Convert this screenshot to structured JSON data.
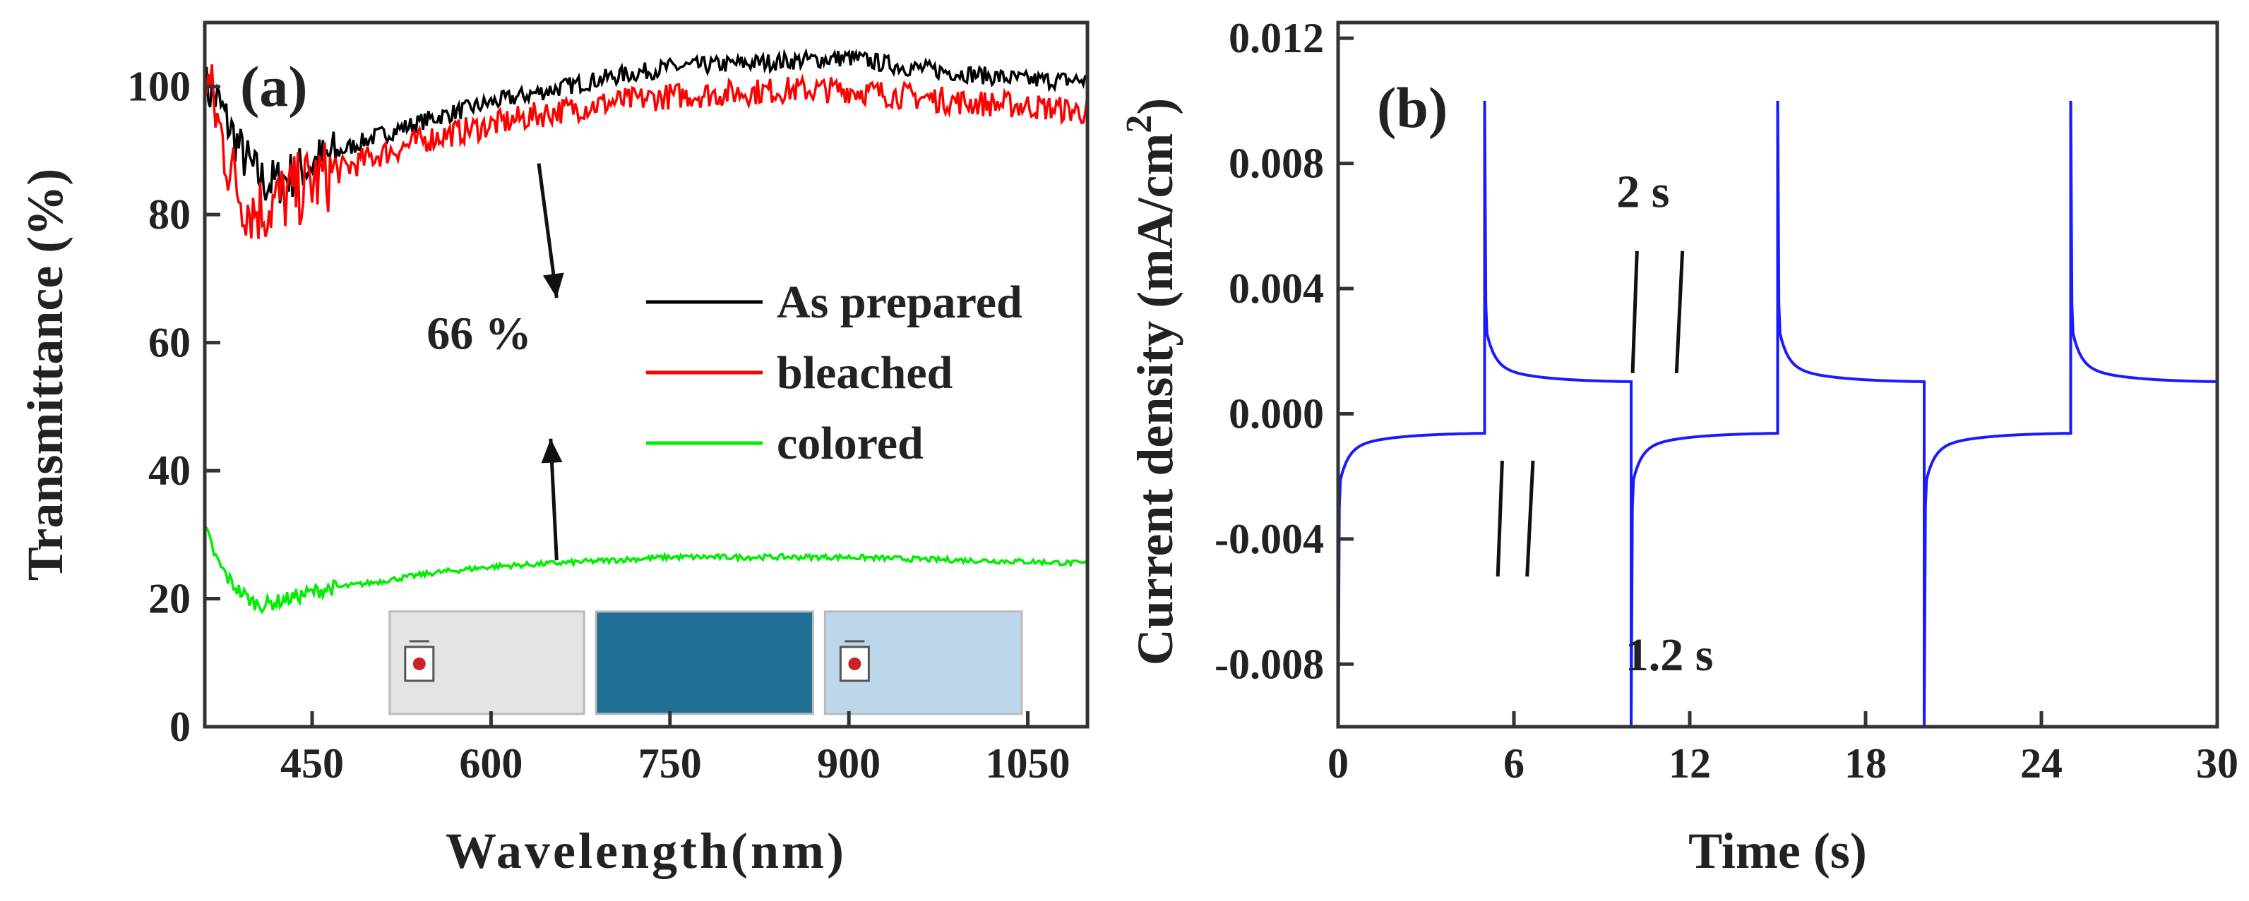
{
  "chart_data": [
    {
      "type": "line",
      "panel_label": "(a)",
      "xlabel": "Wavelength(nm)",
      "ylabel": "Transmittance (%)",
      "xlim": [
        360,
        1100
      ],
      "ylim": [
        0,
        110
      ],
      "x_ticks": [
        450,
        600,
        750,
        900,
        1050
      ],
      "y_ticks": [
        0,
        20,
        40,
        60,
        80,
        100
      ],
      "legend_position": "center-right",
      "series": [
        {
          "name": "As prepared",
          "color": "#000000",
          "points": [
            [
              360,
              100
            ],
            [
              370,
              98
            ],
            [
              380,
              94
            ],
            [
              390,
              90
            ],
            [
              400,
              87
            ],
            [
              410,
              85
            ],
            [
              420,
              85
            ],
            [
              430,
              86
            ],
            [
              450,
              88
            ],
            [
              500,
              92
            ],
            [
              550,
              95
            ],
            [
              600,
              97.5
            ],
            [
              650,
              99.5
            ],
            [
              700,
              101.5
            ],
            [
              750,
              103
            ],
            [
              800,
              103.5
            ],
            [
              850,
              104
            ],
            [
              900,
              104.5
            ],
            [
              950,
              103
            ],
            [
              1000,
              102
            ],
            [
              1050,
              101
            ],
            [
              1100,
              101
            ]
          ],
          "noise": 4
        },
        {
          "name": "bleached",
          "color": "#ff0000",
          "points": [
            [
              360,
              103
            ],
            [
              370,
              95
            ],
            [
              380,
              88
            ],
            [
              390,
              83
            ],
            [
              400,
              81
            ],
            [
              410,
              81
            ],
            [
              420,
              82
            ],
            [
              430,
              83
            ],
            [
              450,
              85
            ],
            [
              500,
              89
            ],
            [
              550,
              92
            ],
            [
              600,
              94
            ],
            [
              650,
              96
            ],
            [
              700,
              97.5
            ],
            [
              750,
              98.5
            ],
            [
              800,
              99
            ],
            [
              850,
              99.5
            ],
            [
              900,
              99.5
            ],
            [
              950,
              98.5
            ],
            [
              1000,
              97.5
            ],
            [
              1050,
              97
            ],
            [
              1100,
              96
            ]
          ],
          "noise": 6
        },
        {
          "name": "colored",
          "color": "#00ee00",
          "points": [
            [
              360,
              31
            ],
            [
              370,
              26
            ],
            [
              380,
              23
            ],
            [
              390,
              21
            ],
            [
              400,
              19.5
            ],
            [
              410,
              19
            ],
            [
              420,
              19.5
            ],
            [
              440,
              20.5
            ],
            [
              460,
              21.5
            ],
            [
              500,
              22.5
            ],
            [
              550,
              24
            ],
            [
              600,
              25
            ],
            [
              650,
              25.5
            ],
            [
              700,
              26
            ],
            [
              750,
              26.5
            ],
            [
              800,
              26.5
            ],
            [
              850,
              26.5
            ],
            [
              900,
              26.5
            ],
            [
              950,
              26.2
            ],
            [
              1000,
              26
            ],
            [
              1050,
              25.8
            ],
            [
              1100,
              25.5
            ]
          ],
          "noise": 1.2
        }
      ],
      "annotations": [
        {
          "text": "66 %",
          "x": 590,
          "y": 59
        }
      ],
      "arrows": [
        {
          "from": [
            640,
            88
          ],
          "to": [
            655,
            67
          ]
        },
        {
          "from": [
            655,
            26
          ],
          "to": [
            650,
            45
          ]
        }
      ],
      "inset_photos": [
        {
          "color": "#e4e4e4",
          "x_range": [
            515,
            678
          ],
          "y_range": [
            2,
            18
          ],
          "has_emblem": true
        },
        {
          "color": "#1f6f94",
          "x_range": [
            688,
            870
          ],
          "y_range": [
            2,
            18
          ],
          "has_emblem": false
        },
        {
          "color": "#bcd6ea",
          "x_range": [
            880,
            1045
          ],
          "y_range": [
            2,
            18
          ],
          "has_emblem": true
        }
      ]
    },
    {
      "type": "line",
      "panel_label": "(b)",
      "xlabel": "Time (s)",
      "ylabel": "Current density (mA/cm",
      "ylabel_superscript": "2",
      "ylabel_suffix": ")",
      "xlim": [
        0,
        30
      ],
      "ylim": [
        -0.01,
        0.0125
      ],
      "x_ticks": [
        0,
        6,
        12,
        18,
        24,
        30
      ],
      "y_ticks": [
        "-0.008",
        "-0.004",
        "0.000",
        "0.004",
        "0.008",
        "0.012"
      ],
      "series": [
        {
          "name": "",
          "color": "#1a1aff",
          "step_times": [
            0,
            5,
            10,
            15,
            20,
            25
          ],
          "period_s": 10,
          "positive_step": {
            "peak": 0.01,
            "spike": 0.0035,
            "steady": 0.001
          },
          "negative_step": {
            "trough": -0.01,
            "spike": -0.003,
            "steady": -0.0006
          }
        }
      ],
      "annotations": [
        {
          "text": "2 s",
          "x": 9.5,
          "y": 0.0066
        },
        {
          "text": "1.2 s",
          "x": 9.8,
          "y": -0.0082
        }
      ],
      "marker_lines": [
        {
          "x1": 10.05,
          "y1": 0.0013,
          "x2": 10.2,
          "y2": 0.0052
        },
        {
          "x1": 11.55,
          "y1": 0.0013,
          "x2": 11.75,
          "y2": 0.0052
        },
        {
          "x1": 5.45,
          "y1": -0.0052,
          "x2": 5.6,
          "y2": -0.0015
        },
        {
          "x1": 6.45,
          "y1": -0.0052,
          "x2": 6.65,
          "y2": -0.0015
        }
      ]
    }
  ]
}
